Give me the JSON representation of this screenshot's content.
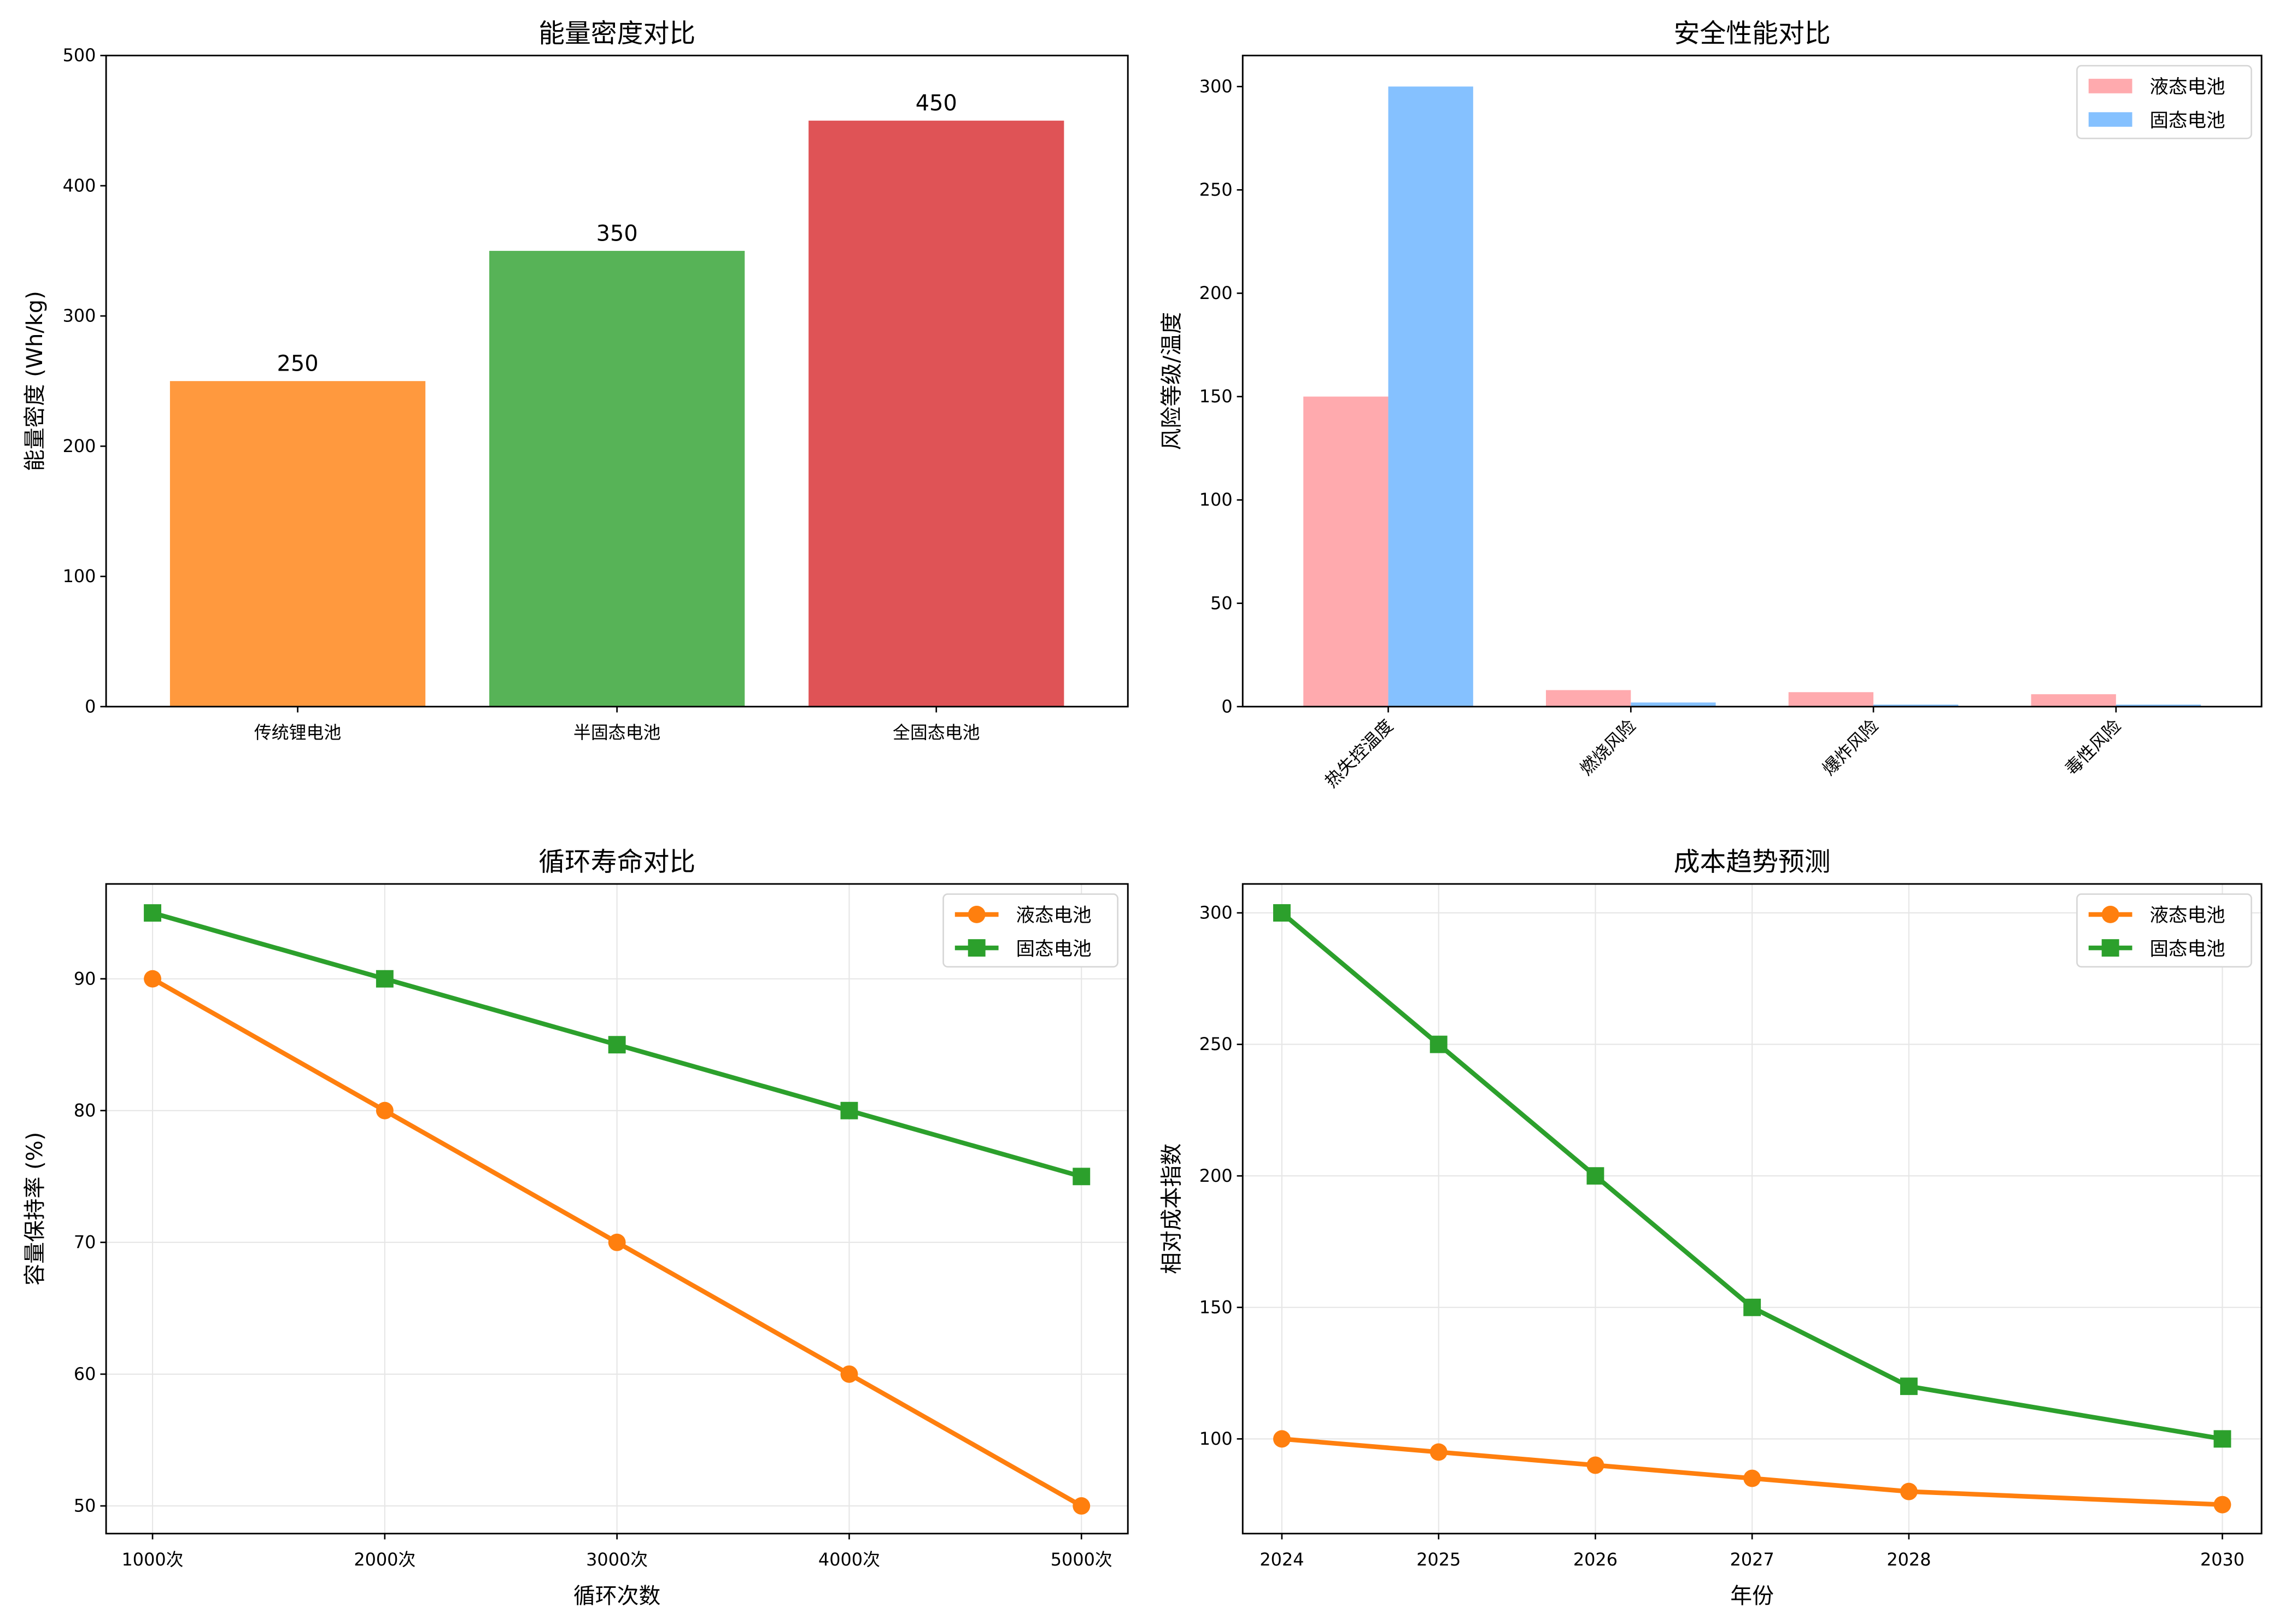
{
  "chart_data": [
    {
      "type": "bar",
      "title": "能量密度对比",
      "xlabel": "",
      "ylabel": "能量密度 (Wh/kg)",
      "categories": [
        "传统锂电池",
        "半固态电池",
        "全固态电池"
      ],
      "values": [
        250,
        350,
        450
      ],
      "colors": [
        "#ff993e",
        "#57b357",
        "#df5356"
      ],
      "data_labels": [
        "250",
        "350",
        "450"
      ],
      "ylim": [
        0,
        500
      ],
      "yticks": [
        0,
        100,
        200,
        300,
        400,
        500
      ],
      "grid": false
    },
    {
      "type": "bar",
      "title": "安全性能对比",
      "xlabel": "",
      "ylabel": "风险等级/温度",
      "categories": [
        "热失控温度",
        "燃烧风险",
        "爆炸风险",
        "毒性风险"
      ],
      "series": [
        {
          "name": "液态电池",
          "values": [
            150,
            8,
            7,
            6
          ],
          "color": "#ffaaae"
        },
        {
          "name": "固态电池",
          "values": [
            300,
            2,
            1,
            1
          ],
          "color": "#85c1ff"
        }
      ],
      "ylim": [
        0,
        315
      ],
      "yticks": [
        0,
        50,
        100,
        150,
        200,
        250,
        300
      ],
      "legend": "top-right",
      "grid": false
    },
    {
      "type": "line",
      "title": "循环寿命对比",
      "xlabel": "循环次数",
      "ylabel": "容量保持率 (%)",
      "categories": [
        "1000次",
        "2000次",
        "3000次",
        "4000次",
        "5000次"
      ],
      "series": [
        {
          "name": "液态电池",
          "values": [
            90,
            80,
            70,
            60,
            50
          ],
          "color": "#ff7f0e",
          "marker": "circle"
        },
        {
          "name": "固态电池",
          "values": [
            95,
            90,
            85,
            80,
            75
          ],
          "color": "#2ca02c",
          "marker": "square"
        }
      ],
      "ylim": [
        47.9,
        97.2
      ],
      "yticks": [
        50,
        60,
        70,
        80,
        90
      ],
      "legend": "top-right",
      "grid": true
    },
    {
      "type": "line",
      "title": "成本趋势预测",
      "xlabel": "年份",
      "ylabel": "相对成本指数",
      "x": [
        2024,
        2025,
        2026,
        2027,
        2028,
        2030
      ],
      "xticks": [
        "2024",
        "2025",
        "2026",
        "2027",
        "2028",
        "2030"
      ],
      "series": [
        {
          "name": "液态电池",
          "values": [
            100,
            95,
            90,
            85,
            80,
            75
          ],
          "color": "#ff7f0e",
          "marker": "circle"
        },
        {
          "name": "固态电池",
          "values": [
            300,
            250,
            200,
            150,
            120,
            100
          ],
          "color": "#2ca02c",
          "marker": "square"
        }
      ],
      "ylim": [
        64,
        311
      ],
      "yticks": [
        100,
        150,
        200,
        250,
        300
      ],
      "legend": "top-right",
      "grid": true
    }
  ]
}
